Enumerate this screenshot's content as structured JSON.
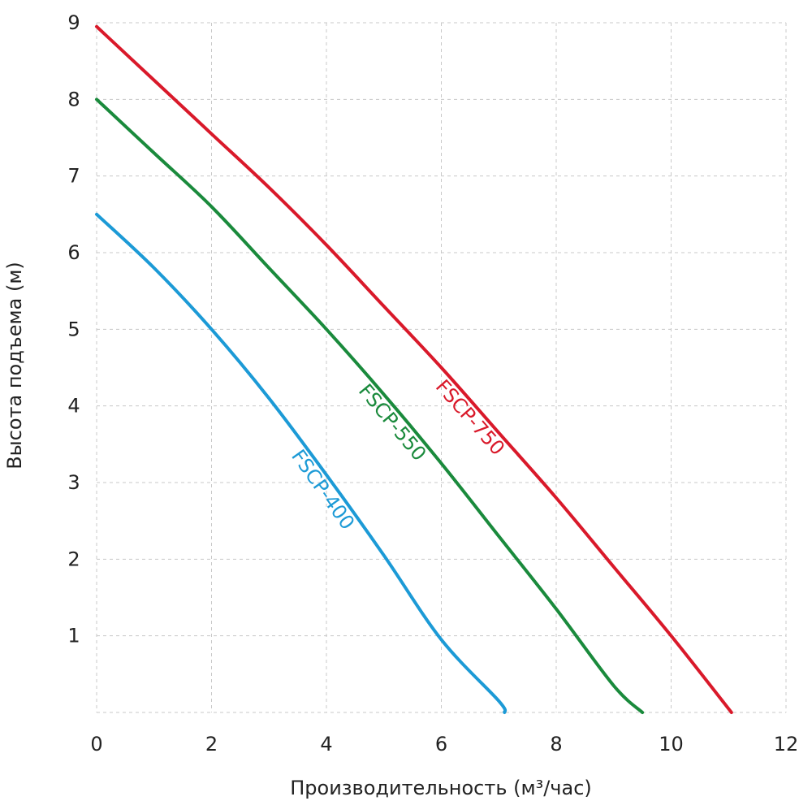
{
  "chart_data": {
    "type": "line",
    "title": "",
    "xlabel": "Производительность (м³/час)",
    "ylabel": "Высота подъема (м)",
    "xlim": [
      0,
      12
    ],
    "ylim": [
      0,
      9
    ],
    "xticks": [
      "0",
      "2",
      "4",
      "6",
      "8",
      "10",
      "12"
    ],
    "yticks": [
      "1",
      "2",
      "3",
      "4",
      "5",
      "6",
      "7",
      "8",
      "9"
    ],
    "grid": true,
    "legend": "inline labels on curves",
    "series": [
      {
        "name": "FSCP-750",
        "color": "#d9192a",
        "x": [
          0,
          1,
          2,
          3,
          4,
          5,
          6,
          7,
          8,
          9,
          10,
          11.05
        ],
        "y": [
          8.95,
          8.25,
          7.55,
          6.85,
          6.1,
          5.3,
          4.5,
          3.65,
          2.8,
          1.9,
          1.0,
          0
        ]
      },
      {
        "name": "FSCP-550",
        "color": "#1a8a3c",
        "x": [
          0,
          1,
          2,
          3,
          4,
          5,
          6,
          7,
          8,
          9,
          9.5
        ],
        "y": [
          8.0,
          7.3,
          6.6,
          5.8,
          5.0,
          4.15,
          3.25,
          2.3,
          1.35,
          0.35,
          0
        ]
      },
      {
        "name": "FSCP-400",
        "color": "#1c9ad6",
        "x": [
          0,
          1,
          2,
          3,
          4,
          5,
          6,
          7,
          7.1
        ],
        "y": [
          6.5,
          5.8,
          5.0,
          4.1,
          3.1,
          2.05,
          0.95,
          0.15,
          0
        ]
      }
    ]
  }
}
